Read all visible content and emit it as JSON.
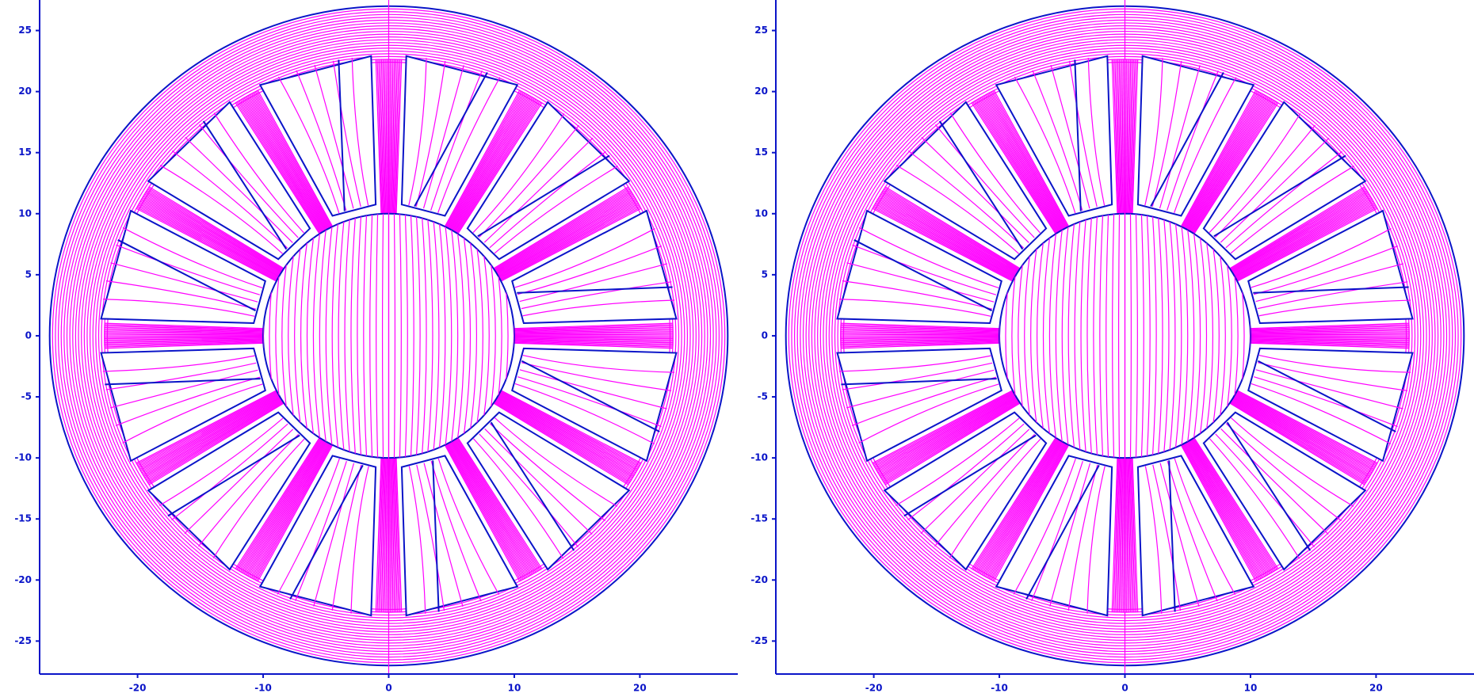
{
  "chart_data": [
    {
      "type": "field",
      "xlim": [
        -27.8,
        27.8
      ],
      "ylim": [
        -27.7,
        27.5
      ],
      "xticks": [
        -20,
        -10,
        0,
        10,
        20
      ],
      "yticks": [
        -25,
        -20,
        -15,
        -10,
        -5,
        0,
        5,
        10,
        15,
        20,
        25
      ],
      "color": "#0a14c8",
      "line_color": "#ff00ff",
      "stator_radius": 27,
      "rotor_radius": 10
    },
    {
      "type": "field",
      "xlim": [
        -27.8,
        27.8
      ],
      "ylim": [
        -27.7,
        27.5
      ],
      "xticks": [
        -20,
        -10,
        0,
        10,
        20
      ],
      "yticks": [
        -25,
        -20,
        -15,
        -10,
        -5,
        0,
        5,
        10,
        15,
        20,
        25
      ],
      "color": "#0a14c8",
      "line_color": "#ff00ff",
      "stator_radius": 27,
      "rotor_radius": 10
    }
  ]
}
